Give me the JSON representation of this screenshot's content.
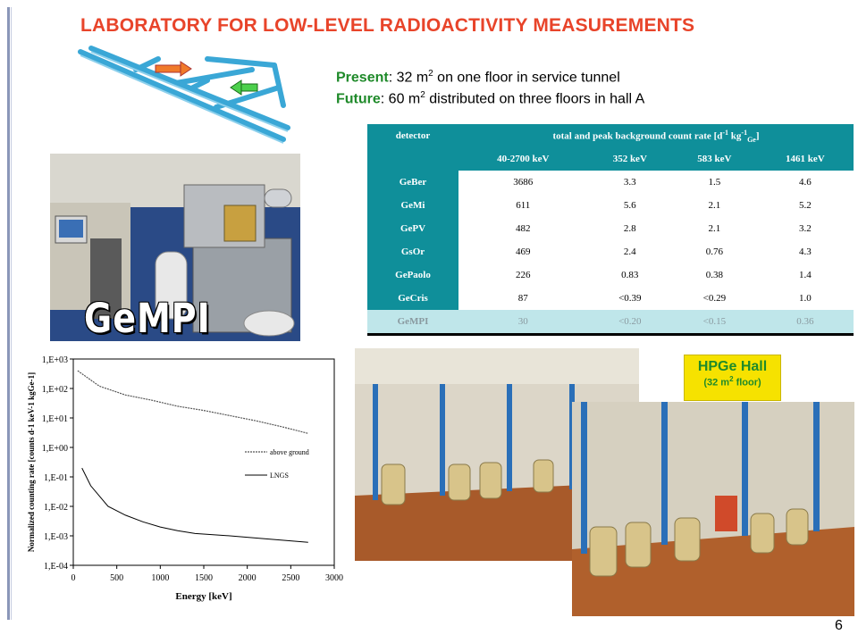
{
  "title": "LABORATORY FOR LOW-LEVEL RADIOACTIVITY MEASUREMENTS",
  "present": {
    "label": "Present",
    "pre": ": 32 m",
    "sup": "2",
    "post": " on one floor in service tunnel"
  },
  "future": {
    "label": "Future",
    "pre": ":   60 m",
    "sup": "2",
    "post": " distributed on three floors in hall A"
  },
  "table": {
    "col_detector": "detector",
    "col_group_pre": "total and peak background count rate [d",
    "col_group_sup1": "-1",
    "col_group_mid": " kg",
    "col_group_sup2": "-1",
    "col_group_sub": "Ge",
    "col_group_post": "]",
    "sub_headers": [
      "40-2700 keV",
      "352 keV",
      "583 keV",
      "1461 keV"
    ],
    "rows": [
      {
        "detector": "GeBer",
        "v": [
          "3686",
          "3.3",
          "1.5",
          "4.6"
        ]
      },
      {
        "detector": "GeMi",
        "v": [
          "611",
          "5.6",
          "2.1",
          "5.2"
        ]
      },
      {
        "detector": "GePV",
        "v": [
          "482",
          "2.8",
          "2.1",
          "3.2"
        ]
      },
      {
        "detector": "GsOr",
        "v": [
          "469",
          "2.4",
          "0.76",
          "4.3"
        ]
      },
      {
        "detector": "GePaolo",
        "v": [
          "226",
          "0.83",
          "0.38",
          "1.4"
        ]
      },
      {
        "detector": "GeCris",
        "v": [
          "87",
          "<0.39",
          "<0.29",
          "1.0"
        ]
      },
      {
        "detector": "GeMPI",
        "v": [
          "30",
          "<0.20",
          "<0.15",
          "0.36"
        ]
      }
    ]
  },
  "gempi_photo_label": "GeMPI",
  "hall": {
    "label": "HPGe Hall",
    "sub_pre": "(32 m",
    "sub_sup": "2",
    "sub_post": " floor)"
  },
  "page_number": "6",
  "colors": {
    "title": "#e8442a",
    "accent_green": "#1f8a2a",
    "table_header": "#0f8f9a",
    "badge": "#f6e200"
  },
  "chart_data": {
    "type": "line",
    "xlabel": "Energy [keV]",
    "ylabel": "Normalized counting rate [counts d-1 keV-1 kgGe-1]",
    "xlim": [
      0,
      3000
    ],
    "ylim": [
      0.0001,
      1000
    ],
    "y_scale": "log",
    "x_ticks": [
      "0",
      "500",
      "1000",
      "1500",
      "2000",
      "2500",
      "3000"
    ],
    "y_ticks": [
      "1,E+03",
      "1,E+02",
      "1,E+01",
      "1,E+00",
      "1,E-01",
      "1,E-02",
      "1,E-03",
      "1,E-04"
    ],
    "legend_position": "right",
    "series": [
      {
        "name": "above ground",
        "x": [
          50,
          300,
          600,
          900,
          1200,
          1500,
          1800,
          2100,
          2400,
          2700
        ],
        "y": [
          400,
          120,
          60,
          40,
          25,
          18,
          12,
          8,
          5,
          3
        ]
      },
      {
        "name": "LNGS",
        "x": [
          100,
          200,
          400,
          600,
          800,
          1000,
          1200,
          1400,
          1800,
          2200,
          2700
        ],
        "y": [
          0.2,
          0.05,
          0.01,
          0.005,
          0.003,
          0.002,
          0.0015,
          0.0012,
          0.001,
          0.0008,
          0.0006
        ]
      }
    ]
  }
}
